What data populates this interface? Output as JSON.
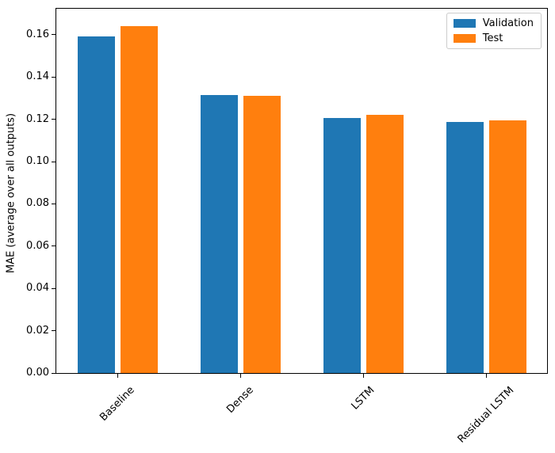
{
  "chart_data": {
    "type": "bar",
    "title": "",
    "categories": [
      "Baseline",
      "Dense",
      "LSTM",
      "Residual LSTM"
    ],
    "series": [
      {
        "name": "Validation",
        "color": "#1f77b4",
        "values": [
          0.1593,
          0.1313,
          0.1205,
          0.1188
        ]
      },
      {
        "name": "Test",
        "color": "#ff7f0e",
        "values": [
          0.1641,
          0.131,
          0.1221,
          0.1196
        ]
      }
    ],
    "xlabel": "",
    "ylabel": "MAE (average over all outputs)",
    "ylim": [
      0,
      0.1723
    ],
    "ytick_values": [
      0,
      0.02,
      0.04,
      0.06,
      0.08,
      0.1,
      0.12,
      0.14,
      0.16
    ],
    "ytick_labels": [
      "0.00",
      "0.02",
      "0.04",
      "0.06",
      "0.08",
      "0.10",
      "0.12",
      "0.14",
      "0.16"
    ],
    "xtick_rotation_deg": 45,
    "grid": false,
    "legend_position": "upper right",
    "axis_color": "#000000",
    "legend_border_color": "#cccccc"
  }
}
